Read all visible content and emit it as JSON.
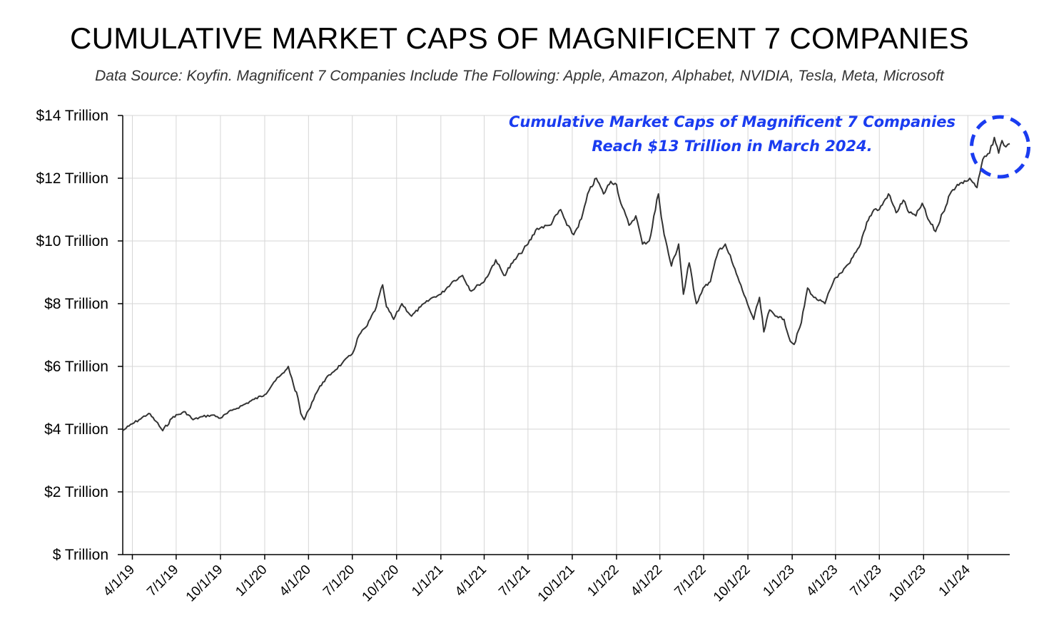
{
  "title": "CUMULATIVE MARKET CAPS OF MAGNIFICENT 7 COMPANIES",
  "subtitle": "Data Source: Koyfin. Magnificent 7 Companies Include The Following: Apple, Amazon, Alphabet, NVIDIA, Tesla, Meta, Microsoft",
  "annotation": {
    "line1": "Cumulative Market Caps of Magnificent 7 Companies",
    "line2": "Reach $13 Trillion in March 2024.",
    "color": "#1a3cf0"
  },
  "chart_data": {
    "type": "line",
    "title": "CUMULATIVE MARKET CAPS OF MAGNIFICENT 7 COMPANIES",
    "xlabel": "",
    "ylabel": "",
    "ylim": [
      0,
      14
    ],
    "xlim": [
      "2019-03-12",
      "2024-03-28"
    ],
    "grid": true,
    "line_color": "#333333",
    "y_ticks": [
      {
        "value": 0,
        "label": "$ Trillion"
      },
      {
        "value": 2,
        "label": "$2 Trillion"
      },
      {
        "value": 4,
        "label": "$4 Trillion"
      },
      {
        "value": 6,
        "label": "$6 Trillion"
      },
      {
        "value": 8,
        "label": "$8 Trillion"
      },
      {
        "value": 10,
        "label": "$10 Trillion"
      },
      {
        "value": 12,
        "label": "$12 Trillion"
      },
      {
        "value": 14,
        "label": "$14 Trillion"
      }
    ],
    "x_ticks": [
      {
        "date": "2019-04-01",
        "label": "4/1/19"
      },
      {
        "date": "2019-07-01",
        "label": "7/1/19"
      },
      {
        "date": "2019-10-01",
        "label": "10/1/19"
      },
      {
        "date": "2020-01-01",
        "label": "1/1/20"
      },
      {
        "date": "2020-04-01",
        "label": "4/1/20"
      },
      {
        "date": "2020-07-01",
        "label": "7/1/20"
      },
      {
        "date": "2020-10-01",
        "label": "10/1/20"
      },
      {
        "date": "2021-01-01",
        "label": "1/1/21"
      },
      {
        "date": "2021-04-01",
        "label": "4/1/21"
      },
      {
        "date": "2021-07-01",
        "label": "7/1/21"
      },
      {
        "date": "2021-10-01",
        "label": "10/1/21"
      },
      {
        "date": "2022-01-01",
        "label": "1/1/22"
      },
      {
        "date": "2022-04-01",
        "label": "4/1/22"
      },
      {
        "date": "2022-07-01",
        "label": "7/1/22"
      },
      {
        "date": "2022-10-01",
        "label": "10/1/22"
      },
      {
        "date": "2023-01-01",
        "label": "1/1/23"
      },
      {
        "date": "2023-04-01",
        "label": "4/1/23"
      },
      {
        "date": "2023-07-01",
        "label": "7/1/23"
      },
      {
        "date": "2023-10-01",
        "label": "10/1/23"
      },
      {
        "date": "2024-01-01",
        "label": "1/1/24"
      }
    ],
    "series": [
      {
        "x": [
          "2019-03-12",
          "2019-03-25",
          "2019-04-15",
          "2019-05-05",
          "2019-05-20",
          "2019-06-03",
          "2019-06-25",
          "2019-07-20",
          "2019-08-05",
          "2019-08-25",
          "2019-09-15",
          "2019-10-01",
          "2019-10-25",
          "2019-11-15",
          "2019-12-10",
          "2020-01-01",
          "2020-01-20",
          "2020-02-10",
          "2020-02-19",
          "2020-03-01",
          "2020-03-10",
          "2020-03-16",
          "2020-03-23",
          "2020-04-01",
          "2020-04-15",
          "2020-05-01",
          "2020-05-20",
          "2020-06-10",
          "2020-07-01",
          "2020-07-15",
          "2020-08-01",
          "2020-08-20",
          "2020-09-02",
          "2020-09-10",
          "2020-09-25",
          "2020-10-12",
          "2020-11-01",
          "2020-11-20",
          "2020-12-15",
          "2021-01-01",
          "2021-01-25",
          "2021-02-15",
          "2021-03-05",
          "2021-03-20",
          "2021-04-01",
          "2021-04-25",
          "2021-05-12",
          "2021-05-30",
          "2021-06-15",
          "2021-07-01",
          "2021-07-20",
          "2021-08-15",
          "2021-09-07",
          "2021-09-20",
          "2021-10-04",
          "2021-10-20",
          "2021-11-05",
          "2021-11-20",
          "2021-12-05",
          "2021-12-20",
          "2022-01-01",
          "2022-01-10",
          "2022-01-27",
          "2022-02-10",
          "2022-02-24",
          "2022-03-10",
          "2022-03-29",
          "2022-04-10",
          "2022-04-25",
          "2022-05-10",
          "2022-05-20",
          "2022-06-01",
          "2022-06-16",
          "2022-06-30",
          "2022-07-15",
          "2022-08-01",
          "2022-08-15",
          "2022-09-01",
          "2022-09-13",
          "2022-09-30",
          "2022-10-13",
          "2022-10-25",
          "2022-11-03",
          "2022-11-15",
          "2022-11-30",
          "2022-12-15",
          "2022-12-28",
          "2023-01-05",
          "2023-01-20",
          "2023-02-02",
          "2023-02-15",
          "2023-03-10",
          "2023-03-30",
          "2023-04-15",
          "2023-05-01",
          "2023-05-20",
          "2023-06-05",
          "2023-06-20",
          "2023-07-01",
          "2023-07-20",
          "2023-08-05",
          "2023-08-20",
          "2023-09-01",
          "2023-09-15",
          "2023-09-28",
          "2023-10-10",
          "2023-10-26",
          "2023-11-10",
          "2023-11-25",
          "2023-12-10",
          "2023-12-28",
          "2024-01-05",
          "2024-01-20",
          "2024-02-01",
          "2024-02-15",
          "2024-02-25",
          "2024-03-05",
          "2024-03-12",
          "2024-03-20",
          "2024-03-28"
        ],
        "y": [
          3.95,
          4.1,
          4.3,
          4.5,
          4.25,
          3.95,
          4.4,
          4.55,
          4.3,
          4.4,
          4.45,
          4.35,
          4.6,
          4.75,
          4.95,
          5.1,
          5.5,
          5.8,
          6.0,
          5.4,
          5.0,
          4.5,
          4.3,
          4.6,
          5.1,
          5.5,
          5.8,
          6.1,
          6.4,
          7.0,
          7.3,
          7.9,
          8.6,
          7.9,
          7.5,
          8.0,
          7.6,
          7.9,
          8.2,
          8.3,
          8.7,
          8.9,
          8.4,
          8.6,
          8.7,
          9.4,
          8.9,
          9.3,
          9.6,
          9.9,
          10.4,
          10.5,
          11.0,
          10.5,
          10.2,
          10.7,
          11.6,
          12.0,
          11.5,
          11.9,
          11.8,
          11.2,
          10.5,
          10.8,
          9.9,
          10.0,
          11.5,
          10.2,
          9.2,
          9.9,
          8.3,
          9.3,
          8.0,
          8.5,
          8.7,
          9.7,
          9.9,
          9.2,
          8.7,
          8.0,
          7.5,
          8.2,
          7.1,
          7.8,
          7.6,
          7.5,
          6.8,
          6.7,
          7.4,
          8.5,
          8.2,
          8.0,
          8.8,
          9.0,
          9.3,
          9.8,
          10.6,
          11.0,
          11.0,
          11.5,
          10.9,
          11.3,
          10.9,
          10.8,
          11.2,
          10.7,
          10.3,
          10.9,
          11.5,
          11.8,
          11.9,
          12.0,
          11.7,
          12.6,
          12.8,
          13.3,
          12.8,
          13.2,
          13.0,
          13.1
        ],
        "peak_marker": {
          "date": "2024-03-08",
          "value": 13.0
        }
      }
    ]
  }
}
